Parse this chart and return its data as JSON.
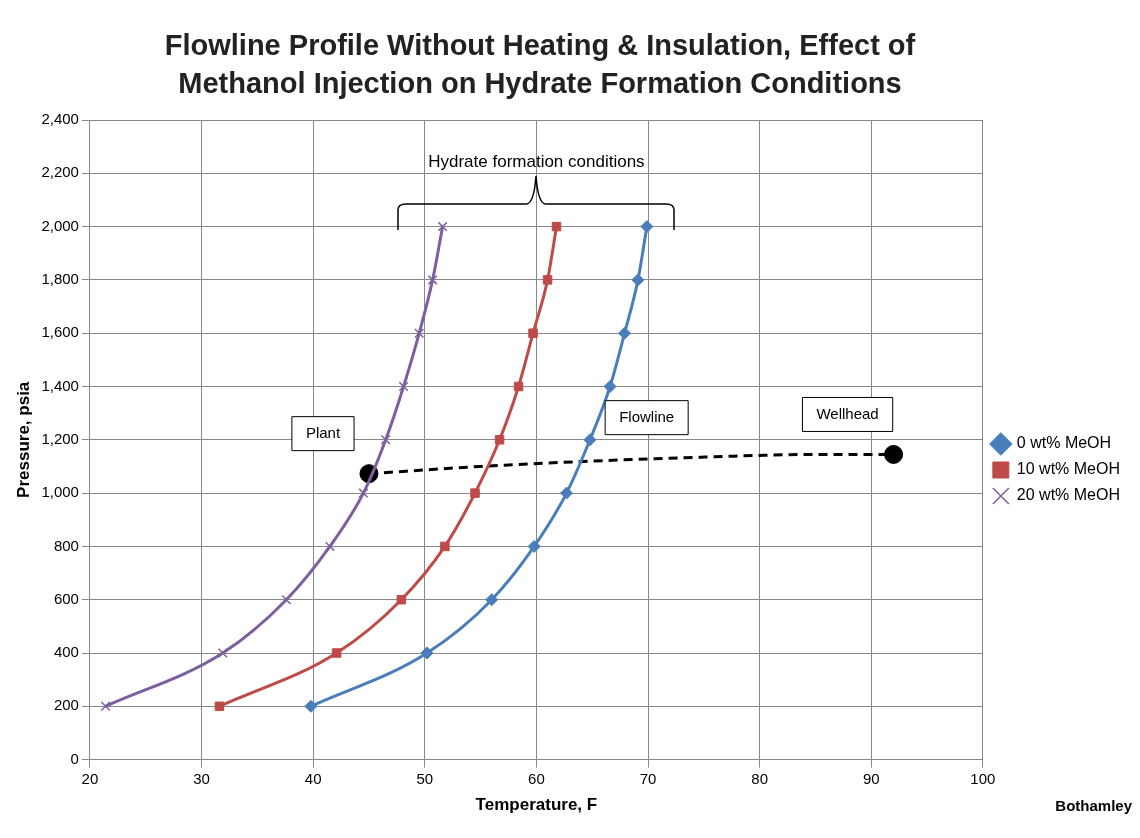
{
  "chart_data": {
    "type": "line",
    "title": "Flowline Profile Without Heating & Insulation, Effect of Methanol Injection on Hydrate Formation Conditions",
    "xlabel": "Temperature, F",
    "ylabel": "Pressure, psia",
    "xlim": [
      20,
      100
    ],
    "xticks": [
      20,
      30,
      40,
      50,
      60,
      70,
      80,
      90,
      100
    ],
    "ylim": [
      0,
      2400
    ],
    "yticks": [
      0,
      200,
      400,
      600,
      800,
      {
        "value": 1000,
        "label": "1,000"
      },
      {
        "value": 1200,
        "label": "1,200"
      },
      {
        "value": 1400,
        "label": "1,400"
      },
      {
        "value": 1600,
        "label": "1,600"
      },
      {
        "value": 1800,
        "label": "1,800"
      },
      {
        "value": 2000,
        "label": "2,000"
      },
      {
        "value": 2200,
        "label": "2,200"
      },
      {
        "value": 2400,
        "label": "2,400"
      }
    ],
    "grid": true,
    "legend": "right",
    "series": [
      {
        "name": "0 wt% MeOH",
        "color": "#4a7ebb",
        "marker": "diamond",
        "x": [
          39.8,
          50.2,
          56.0,
          59.8,
          62.7,
          64.8,
          66.6,
          67.9,
          69.1,
          69.9
        ],
        "values": [
          200,
          400,
          600,
          800,
          1000,
          1200,
          1400,
          1600,
          1800,
          2000
        ]
      },
      {
        "name": "10 wt% MeOH",
        "color": "#be4b48",
        "marker": "square",
        "x": [
          31.6,
          42.1,
          47.9,
          51.8,
          54.5,
          56.7,
          58.4,
          59.7,
          61.0,
          61.8
        ],
        "values": [
          200,
          400,
          600,
          800,
          1000,
          1200,
          1400,
          1600,
          1800,
          2000
        ]
      },
      {
        "name": "20 wt% MeOH",
        "color": "#7d5fa0",
        "marker": "cross",
        "x": [
          21.4,
          31.9,
          37.6,
          41.5,
          44.5,
          46.5,
          48.1,
          49.5,
          50.7,
          51.6
        ],
        "values": [
          200,
          400,
          600,
          800,
          1000,
          1200,
          1400,
          1600,
          1800,
          2000
        ]
      },
      {
        "type": "line",
        "color": "#000000",
        "marker": "none",
        "line_style": "dashed",
        "x": [
          45,
          55,
          65,
          75,
          85,
          92
        ],
        "values": [
          1073,
          1100,
          1120,
          1135,
          1145,
          1145
        ]
      },
      {
        "type": "scatter",
        "color": "#000000",
        "marker": "circle",
        "x": [
          45,
          92
        ],
        "values": [
          1073,
          1145
        ]
      }
    ],
    "annotations": [
      {
        "text": "Plant",
        "x": 45,
        "y": 1073
      },
      {
        "text": "Flowline",
        "x": 74,
        "y": 1133
      },
      {
        "text": "Wellhead",
        "x": 92,
        "y": 1145
      },
      "Hydrate formation conditions",
      "Bothamley"
    ]
  }
}
